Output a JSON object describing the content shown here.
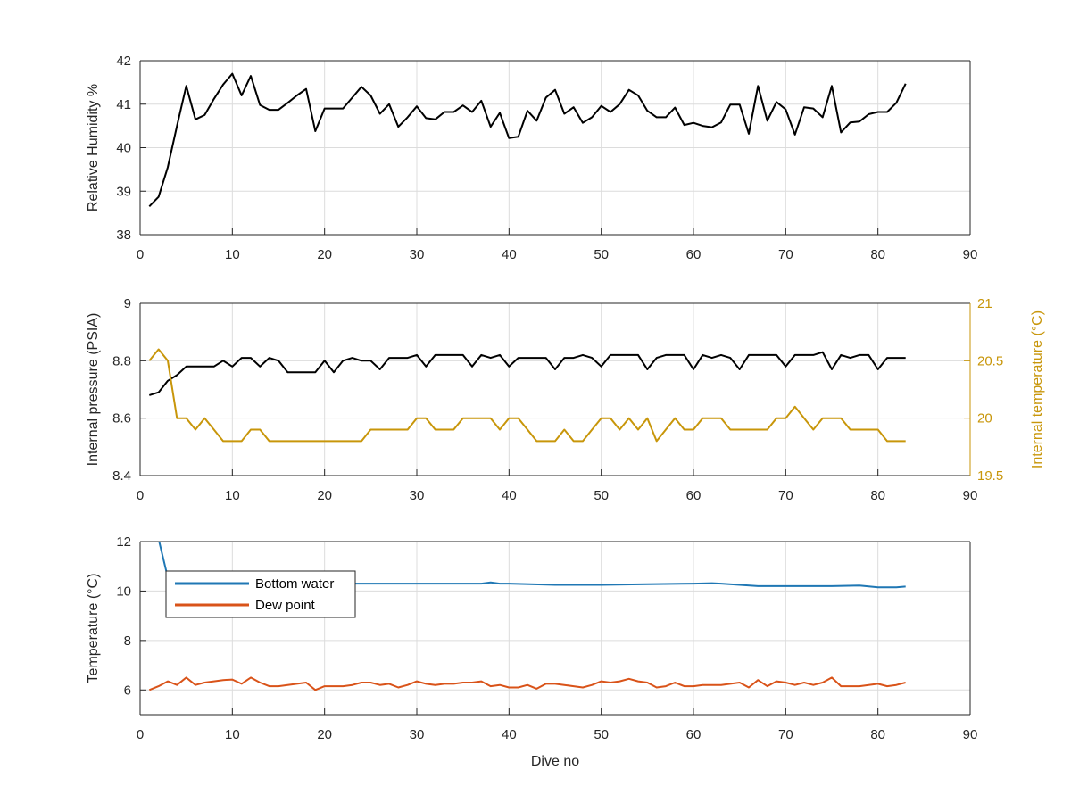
{
  "chart_data": [
    {
      "type": "line",
      "ylabel": "Relative Humidity %",
      "xlim": [
        0,
        90
      ],
      "ylim": [
        38,
        42
      ],
      "xticks": [
        "0",
        "10",
        "20",
        "30",
        "40",
        "50",
        "60",
        "70",
        "80",
        "90"
      ],
      "yticks": [
        "38",
        "39",
        "40",
        "41",
        "42"
      ],
      "grid": true,
      "series": [
        {
          "color": "#000000",
          "x": [
            1,
            2,
            3,
            4,
            5,
            6,
            7,
            8,
            9,
            10,
            11,
            12,
            13,
            14,
            15,
            16,
            17,
            18,
            19,
            20,
            21,
            22,
            23,
            24,
            25,
            26,
            27,
            28,
            29,
            30,
            31,
            32,
            33,
            34,
            35,
            36,
            37,
            38,
            39,
            40,
            41,
            42,
            43,
            44,
            45,
            46,
            47,
            48,
            49,
            50,
            51,
            52,
            53,
            54,
            55,
            56,
            57,
            58,
            59,
            60,
            61,
            62,
            63,
            64,
            65,
            66,
            67,
            68,
            69,
            70,
            71,
            72,
            73,
            74,
            75,
            76,
            77,
            78,
            79,
            80,
            81,
            82,
            83
          ],
          "values": [
            38.65,
            38.87,
            39.55,
            40.5,
            41.42,
            40.65,
            40.75,
            41.12,
            41.45,
            41.7,
            41.2,
            41.65,
            40.98,
            40.87,
            40.87,
            41.03,
            41.2,
            41.35,
            40.38,
            40.9,
            40.9,
            40.9,
            41.15,
            41.4,
            41.2,
            40.78,
            41.0,
            40.48,
            40.7,
            40.95,
            40.68,
            40.65,
            40.82,
            40.82,
            40.97,
            40.82,
            41.08,
            40.48,
            40.8,
            40.22,
            40.25,
            40.85,
            40.62,
            41.15,
            41.33,
            40.78,
            40.93,
            40.57,
            40.7,
            40.96,
            40.82,
            41.0,
            41.33,
            41.2,
            40.85,
            40.7,
            40.7,
            40.92,
            40.52,
            40.57,
            40.5,
            40.47,
            40.58,
            40.99,
            40.99,
            40.32,
            41.42,
            40.62,
            41.05,
            40.88,
            40.3,
            40.93,
            40.9,
            40.7,
            41.42,
            40.35,
            40.58,
            40.6,
            40.77,
            40.82,
            40.82,
            41.03,
            41.47
          ]
        }
      ]
    },
    {
      "type": "line",
      "ylabel": "Internal pressure (PSIA)",
      "y2label": "Internal temperature (°C)",
      "xlim": [
        0,
        90
      ],
      "ylim": [
        8.4,
        9
      ],
      "y2lim": [
        19.5,
        21
      ],
      "xticks": [
        "0",
        "10",
        "20",
        "30",
        "40",
        "50",
        "60",
        "70",
        "80",
        "90"
      ],
      "yticks": [
        "8.4",
        "8.6",
        "8.8",
        "9"
      ],
      "y2ticks": [
        "19.5",
        "20",
        "20.5",
        "21"
      ],
      "grid": true,
      "series": [
        {
          "axis": "left",
          "color": "#000000",
          "x": [
            1,
            2,
            3,
            4,
            5,
            6,
            7,
            8,
            9,
            10,
            11,
            12,
            13,
            14,
            15,
            16,
            17,
            18,
            19,
            20,
            21,
            22,
            23,
            24,
            25,
            26,
            27,
            28,
            29,
            30,
            31,
            32,
            33,
            34,
            35,
            36,
            37,
            38,
            39,
            40,
            41,
            42,
            43,
            44,
            45,
            46,
            47,
            48,
            49,
            50,
            51,
            52,
            53,
            54,
            55,
            56,
            57,
            58,
            59,
            60,
            61,
            62,
            63,
            64,
            65,
            66,
            67,
            68,
            69,
            70,
            71,
            72,
            73,
            74,
            75,
            76,
            77,
            78,
            79,
            80,
            81,
            82,
            83
          ],
          "values": [
            8.68,
            8.69,
            8.73,
            8.75,
            8.78,
            8.78,
            8.78,
            8.78,
            8.8,
            8.78,
            8.81,
            8.81,
            8.78,
            8.81,
            8.8,
            8.76,
            8.76,
            8.76,
            8.76,
            8.8,
            8.76,
            8.8,
            8.81,
            8.8,
            8.8,
            8.77,
            8.81,
            8.81,
            8.81,
            8.82,
            8.78,
            8.82,
            8.82,
            8.82,
            8.82,
            8.78,
            8.82,
            8.81,
            8.82,
            8.78,
            8.81,
            8.81,
            8.81,
            8.81,
            8.77,
            8.81,
            8.81,
            8.82,
            8.81,
            8.78,
            8.82,
            8.82,
            8.82,
            8.82,
            8.77,
            8.81,
            8.82,
            8.82,
            8.82,
            8.77,
            8.82,
            8.81,
            8.82,
            8.81,
            8.77,
            8.82,
            8.82,
            8.82,
            8.82,
            8.78,
            8.82,
            8.82,
            8.82,
            8.83,
            8.77,
            8.82,
            8.81,
            8.82,
            8.82,
            8.77,
            8.81,
            8.81,
            8.81
          ]
        },
        {
          "axis": "right",
          "color": "#c8960a",
          "x": [
            1,
            2,
            3,
            4,
            5,
            6,
            7,
            8,
            9,
            10,
            11,
            12,
            13,
            14,
            15,
            16,
            17,
            18,
            19,
            20,
            21,
            22,
            23,
            24,
            25,
            26,
            27,
            28,
            29,
            30,
            31,
            32,
            33,
            34,
            35,
            36,
            37,
            38,
            39,
            40,
            41,
            42,
            43,
            44,
            45,
            46,
            47,
            48,
            49,
            50,
            51,
            52,
            53,
            54,
            55,
            56,
            57,
            58,
            59,
            60,
            61,
            62,
            63,
            64,
            65,
            66,
            67,
            68,
            69,
            70,
            71,
            72,
            73,
            74,
            75,
            76,
            77,
            78,
            79,
            80,
            81,
            82,
            83
          ],
          "values": [
            20.5,
            20.6,
            20.5,
            20.0,
            20.0,
            19.9,
            20.0,
            19.9,
            19.8,
            19.8,
            19.8,
            19.9,
            19.9,
            19.8,
            19.8,
            19.8,
            19.8,
            19.8,
            19.8,
            19.8,
            19.8,
            19.8,
            19.8,
            19.8,
            19.9,
            19.9,
            19.9,
            19.9,
            19.9,
            20.0,
            20.0,
            19.9,
            19.9,
            19.9,
            20.0,
            20.0,
            20.0,
            20.0,
            19.9,
            20.0,
            20.0,
            19.9,
            19.8,
            19.8,
            19.8,
            19.9,
            19.8,
            19.8,
            19.9,
            20.0,
            20.0,
            19.9,
            20.0,
            19.9,
            20.0,
            19.8,
            19.9,
            20.0,
            19.9,
            19.9,
            20.0,
            20.0,
            20.0,
            19.9,
            19.9,
            19.9,
            19.9,
            19.9,
            20.0,
            20.0,
            20.1,
            20.0,
            19.9,
            20.0,
            20.0,
            20.0,
            19.9,
            19.9,
            19.9,
            19.9,
            19.8,
            19.8,
            19.8
          ]
        }
      ]
    },
    {
      "type": "line",
      "xlabel": "Dive no",
      "ylabel": "Temperature (°C)",
      "xlim": [
        0,
        90
      ],
      "ylim": [
        5,
        12
      ],
      "xticks": [
        "0",
        "10",
        "20",
        "30",
        "40",
        "50",
        "60",
        "70",
        "80",
        "90"
      ],
      "yticks": [
        "6",
        "8",
        "10",
        "12"
      ],
      "grid": true,
      "legend": "top-left",
      "series": [
        {
          "name": "Bottom water",
          "color": "#1f77b4",
          "x": [
            2,
            3,
            4,
            5,
            6,
            7,
            8,
            9,
            10,
            15,
            20,
            25,
            30,
            35,
            37,
            38,
            39,
            40,
            45,
            50,
            55,
            60,
            62,
            63,
            65,
            67,
            70,
            75,
            78,
            80,
            81,
            82,
            83
          ],
          "values": [
            12.1,
            10.55,
            10.35,
            10.3,
            10.3,
            10.3,
            10.3,
            10.3,
            10.3,
            10.3,
            10.3,
            10.3,
            10.3,
            10.3,
            10.3,
            10.35,
            10.3,
            10.3,
            10.25,
            10.25,
            10.28,
            10.3,
            10.32,
            10.3,
            10.25,
            10.2,
            10.2,
            10.2,
            10.22,
            10.15,
            10.15,
            10.15,
            10.18
          ]
        },
        {
          "name": "Dew point",
          "color": "#d95319",
          "x": [
            1,
            2,
            3,
            4,
            5,
            6,
            7,
            8,
            9,
            10,
            11,
            12,
            13,
            14,
            15,
            16,
            17,
            18,
            19,
            20,
            21,
            22,
            23,
            24,
            25,
            26,
            27,
            28,
            29,
            30,
            31,
            32,
            33,
            34,
            35,
            36,
            37,
            38,
            39,
            40,
            41,
            42,
            43,
            44,
            45,
            46,
            47,
            48,
            49,
            50,
            51,
            52,
            53,
            54,
            55,
            56,
            57,
            58,
            59,
            60,
            61,
            62,
            63,
            64,
            65,
            66,
            67,
            68,
            69,
            70,
            71,
            72,
            73,
            74,
            75,
            76,
            77,
            78,
            79,
            80,
            81,
            82,
            83
          ],
          "values": [
            6.0,
            6.15,
            6.35,
            6.2,
            6.5,
            6.2,
            6.3,
            6.35,
            6.4,
            6.42,
            6.25,
            6.5,
            6.3,
            6.15,
            6.15,
            6.2,
            6.25,
            6.3,
            6.0,
            6.15,
            6.15,
            6.15,
            6.2,
            6.3,
            6.3,
            6.2,
            6.25,
            6.1,
            6.2,
            6.35,
            6.25,
            6.2,
            6.25,
            6.25,
            6.3,
            6.3,
            6.35,
            6.15,
            6.2,
            6.1,
            6.1,
            6.2,
            6.05,
            6.25,
            6.25,
            6.2,
            6.15,
            6.1,
            6.2,
            6.35,
            6.3,
            6.35,
            6.45,
            6.35,
            6.3,
            6.1,
            6.15,
            6.3,
            6.15,
            6.15,
            6.2,
            6.2,
            6.2,
            6.25,
            6.3,
            6.1,
            6.4,
            6.15,
            6.35,
            6.3,
            6.2,
            6.3,
            6.2,
            6.3,
            6.5,
            6.15,
            6.15,
            6.15,
            6.2,
            6.25,
            6.15,
            6.2,
            6.3
          ]
        }
      ]
    }
  ]
}
